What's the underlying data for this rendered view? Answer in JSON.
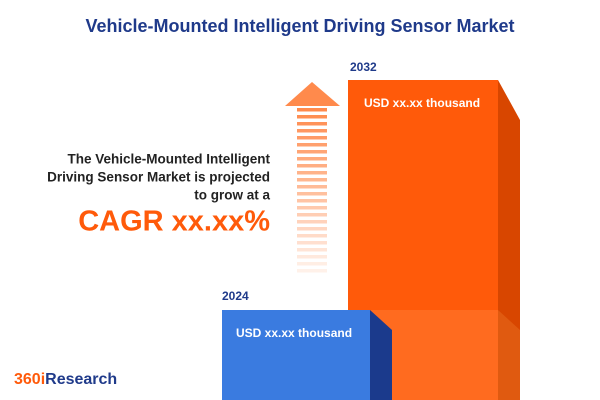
{
  "header": {
    "title": "Vehicle-Mounted Intelligent Driving Sensor Market"
  },
  "bars": [
    {
      "year": "2024",
      "label": "USD xx.xx thousand"
    },
    {
      "year": "2032",
      "label": "USD xx.xx thousand"
    }
  ],
  "summary": {
    "lines": [
      "The Vehicle-Mounted Intelligent",
      "Driving Sensor Market is projected",
      "to grow at a"
    ],
    "cagr": "CAGR xx.xx%"
  },
  "logo": {
    "prefix": "360i",
    "suffix": "Research"
  }
}
